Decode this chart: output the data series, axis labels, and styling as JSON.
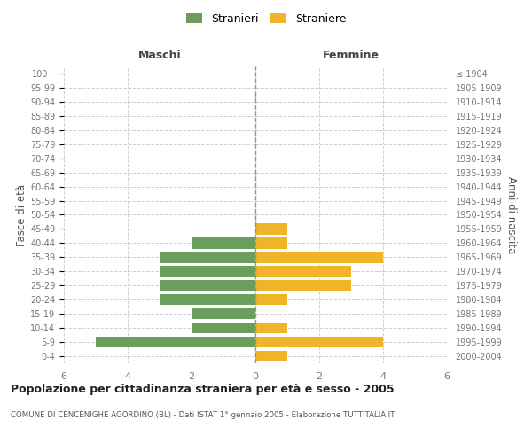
{
  "age_groups": [
    "0-4",
    "5-9",
    "10-14",
    "15-19",
    "20-24",
    "25-29",
    "30-34",
    "35-39",
    "40-44",
    "45-49",
    "50-54",
    "55-59",
    "60-64",
    "65-69",
    "70-74",
    "75-79",
    "80-84",
    "85-89",
    "90-94",
    "95-99",
    "100+"
  ],
  "birth_years": [
    "2000-2004",
    "1995-1999",
    "1990-1994",
    "1985-1989",
    "1980-1984",
    "1975-1979",
    "1970-1974",
    "1965-1969",
    "1960-1964",
    "1955-1959",
    "1950-1954",
    "1945-1949",
    "1940-1944",
    "1935-1939",
    "1930-1934",
    "1925-1929",
    "1920-1924",
    "1915-1919",
    "1910-1914",
    "1905-1909",
    "≤ 1904"
  ],
  "males": [
    0,
    5,
    2,
    2,
    3,
    3,
    3,
    3,
    2,
    0,
    0,
    0,
    0,
    0,
    0,
    0,
    0,
    0,
    0,
    0,
    0
  ],
  "females": [
    1,
    4,
    1,
    0,
    1,
    3,
    3,
    4,
    1,
    1,
    0,
    0,
    0,
    0,
    0,
    0,
    0,
    0,
    0,
    0,
    0
  ],
  "male_color": "#6a9e5a",
  "female_color": "#f0b429",
  "title": "Popolazione per cittadinanza straniera per età e sesso - 2005",
  "subtitle": "COMUNE DI CENCENIGHE AGORDINO (BL) - Dati ISTAT 1° gennaio 2005 - Elaborazione TUTTITALIA.IT",
  "xlabel_left": "Maschi",
  "xlabel_right": "Femmine",
  "ylabel_left": "Fasce di età",
  "ylabel_right": "Anni di nascita",
  "legend_male": "Stranieri",
  "legend_female": "Straniere",
  "xlim": 6,
  "background_color": "#ffffff",
  "grid_color": "#d0d0d0",
  "zero_line_color": "#999966",
  "tick_color": "#777777",
  "header_color": "#444444",
  "label_color": "#555555"
}
